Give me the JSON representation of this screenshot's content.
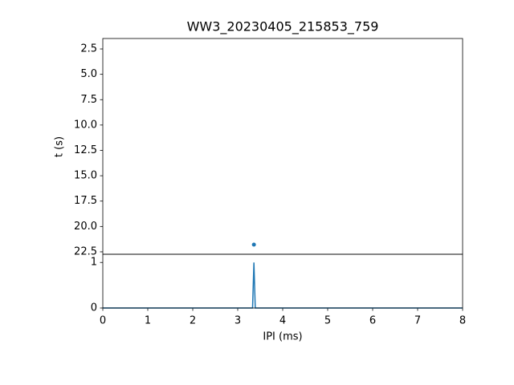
{
  "chart_data": [
    {
      "type": "scatter",
      "title": "WW3_20230405_215853_759",
      "y_label": "t (s)",
      "xlim": [
        0,
        8
      ],
      "ylim": [
        22.74,
        1.47
      ],
      "yticks": [
        2.5,
        {
          "value": 5,
          "label": "5.0"
        },
        7.5,
        {
          "value": 10,
          "label": "10.0"
        },
        12.5,
        {
          "value": 15,
          "label": "15.0"
        },
        17.5,
        {
          "value": 20,
          "label": "20.0"
        },
        22.5
      ],
      "series": [
        {
          "color": "#1f77b4",
          "x": [
            3.36
          ],
          "values": [
            21.79
          ]
        }
      ]
    },
    {
      "type": "line",
      "x_label": "IPI (ms)",
      "xlim": [
        0,
        8
      ],
      "xticks": [
        0,
        1,
        2,
        3,
        4,
        5,
        6,
        7,
        8
      ],
      "ylim": [
        0,
        1.18
      ],
      "yticks": [
        0,
        1
      ],
      "series": [
        {
          "color": "#1f77b4",
          "x": [
            0,
            3.33,
            3.36,
            3.39,
            8
          ],
          "values": [
            0,
            0,
            1,
            0,
            0
          ]
        }
      ]
    }
  ]
}
